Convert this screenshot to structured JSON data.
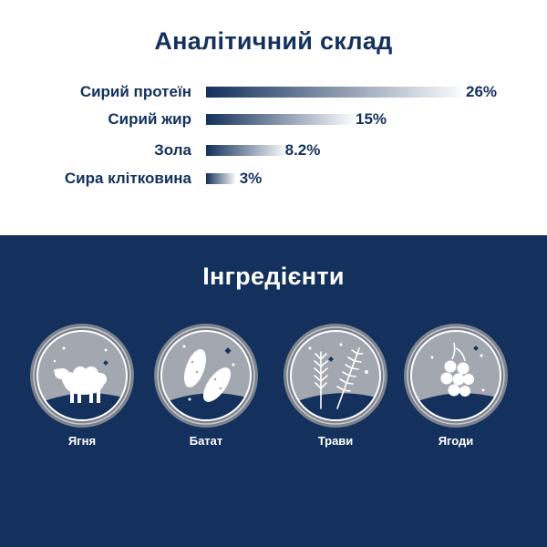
{
  "analysis": {
    "title": "Аналітичний склад",
    "rows": [
      {
        "label": "Сирий протеїн",
        "value": "26%",
        "percent": 26
      },
      {
        "label": "Сирий жир",
        "value": "15%",
        "percent": 15
      },
      {
        "label": "Зола",
        "value": "8.2%",
        "percent": 8.2
      },
      {
        "label": "Сира клітковина",
        "value": "3%",
        "percent": 3
      }
    ]
  },
  "ingredients": {
    "title": "Інгредієнти",
    "items": [
      {
        "label": "Ягня",
        "icon": "lamb-icon"
      },
      {
        "label": "Батат",
        "icon": "sweet-potato-icon"
      },
      {
        "label": "Трави",
        "icon": "herbs-icon"
      },
      {
        "label": "Ягоди",
        "icon": "berries-icon"
      }
    ]
  },
  "colors": {
    "navy": "#13315c",
    "bar_start": "#13315c",
    "bar_end": "#ffffff",
    "circle_gray": "#a3a7b0"
  }
}
